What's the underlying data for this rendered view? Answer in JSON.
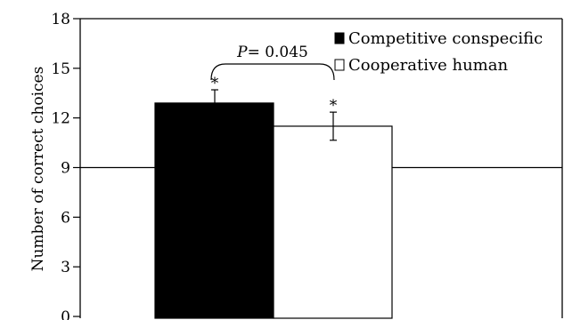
{
  "chart_data": {
    "type": "bar",
    "title": "",
    "xlabel": "",
    "ylabel": "Number of correct choices",
    "ylim": [
      0,
      18
    ],
    "yticks": [
      "0",
      "3",
      "6",
      "9",
      "12",
      "15",
      "18"
    ],
    "grid": false,
    "reference_line": 9,
    "legend_placement": "top-right",
    "series": [
      {
        "name": "Competitive conspecific",
        "value": 12.9,
        "error": 0.8,
        "color": "#000000",
        "significance": "*"
      },
      {
        "name": "Cooperative human",
        "value": 11.5,
        "error": 0.85,
        "color": "#ffffff",
        "significance": "*"
      }
    ],
    "annotation": {
      "p_letter": "P",
      "p_rest": "= 0.045"
    }
  }
}
